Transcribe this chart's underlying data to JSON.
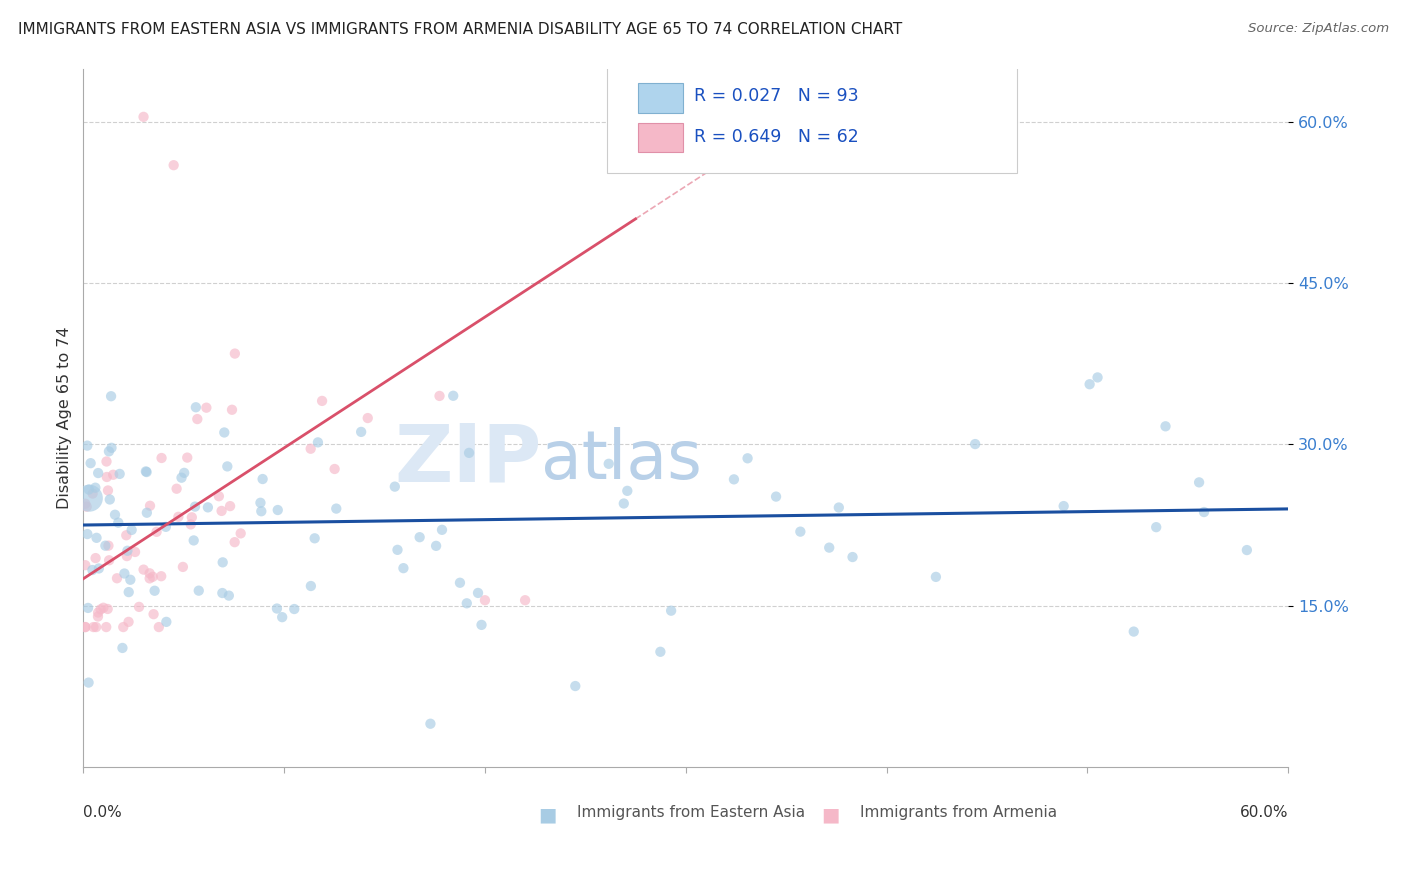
{
  "title": "IMMIGRANTS FROM EASTERN ASIA VS IMMIGRANTS FROM ARMENIA DISABILITY AGE 65 TO 74 CORRELATION CHART",
  "source": "Source: ZipAtlas.com",
  "ylabel": "Disability Age 65 to 74",
  "ytick_labels": [
    "15.0%",
    "30.0%",
    "45.0%",
    "60.0%"
  ],
  "ytick_values": [
    0.15,
    0.3,
    0.45,
    0.6
  ],
  "xmin": 0.0,
  "xmax": 0.6,
  "ymin": 0.0,
  "ymax": 0.65,
  "legend_r1": "0.027",
  "legend_n1": "93",
  "legend_r2": "0.649",
  "legend_n2": "62",
  "color_blue": "#a8cce4",
  "color_pink": "#f5b8c8",
  "color_blue_line": "#1a4fa0",
  "color_pink_line": "#d9506a",
  "color_title": "#222222",
  "color_source": "#666666",
  "color_legend_text_blue": "#2060c0",
  "watermark_zip": "ZIP",
  "watermark_atlas": "atlas",
  "watermark_color_zip": "#dce8f5",
  "watermark_color_atlas": "#b8d0e8",
  "background_color": "#ffffff",
  "grid_color": "#d0d0d0",
  "blue_line_y_at_0": 0.225,
  "blue_line_y_at_60": 0.24,
  "pink_line_x0": 0.0,
  "pink_line_y0": 0.175,
  "pink_line_x1": 0.275,
  "pink_line_y1": 0.51
}
